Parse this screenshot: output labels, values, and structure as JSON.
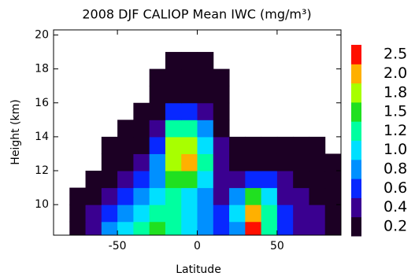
{
  "chart_data": {
    "type": "heatmap",
    "title": "2008 DJF CALIOP Mean IWC (mg/m³)",
    "xlabel": "Latitude",
    "ylabel": "Height (km)",
    "xlim": [
      -90,
      90
    ],
    "ylim": [
      8.2,
      20.3
    ],
    "xticks": [
      -50,
      0,
      50
    ],
    "yticks": [
      10,
      12,
      14,
      16,
      18,
      20
    ],
    "x": [
      -75,
      -65,
      -55,
      -45,
      -35,
      -25,
      -15,
      -5,
      5,
      15,
      25,
      35,
      45,
      55,
      65,
      75,
      85
    ],
    "y": [
      8.5,
      9.5,
      10.5,
      11.5,
      12.5,
      13.5,
      14.5,
      15.5,
      16.5,
      17.5,
      18.5,
      19.5
    ],
    "z": [
      [
        0.2,
        0.4,
        0.8,
        1.0,
        1.2,
        1.5,
        1.2,
        1.0,
        0.8,
        0.6,
        0.8,
        2.5,
        1.2,
        0.6,
        0.4,
        0.4,
        0.2
      ],
      [
        0.1,
        0.4,
        0.6,
        0.8,
        1.0,
        1.2,
        1.2,
        1.0,
        0.8,
        0.6,
        1.0,
        2.0,
        1.2,
        0.6,
        0.4,
        0.4,
        0.2
      ],
      [
        0.05,
        0.2,
        0.4,
        0.6,
        0.8,
        1.0,
        1.2,
        1.0,
        0.8,
        0.4,
        0.8,
        1.5,
        1.0,
        0.4,
        0.4,
        0.2,
        0.1
      ],
      [
        null,
        0.1,
        0.2,
        0.4,
        0.6,
        0.8,
        1.5,
        1.5,
        1.0,
        0.4,
        0.4,
        0.6,
        0.6,
        0.4,
        0.2,
        0.2,
        0.1
      ],
      [
        null,
        null,
        0.1,
        0.2,
        0.4,
        0.8,
        1.8,
        2.0,
        1.2,
        0.4,
        0.2,
        0.2,
        0.2,
        0.2,
        0.1,
        0.1,
        0.05
      ],
      [
        null,
        null,
        0.05,
        0.1,
        0.2,
        0.6,
        1.8,
        1.8,
        1.0,
        0.4,
        0.1,
        0.1,
        0.1,
        0.1,
        0.1,
        0.05,
        null
      ],
      [
        null,
        null,
        null,
        0.05,
        0.1,
        0.4,
        1.2,
        1.2,
        0.8,
        0.2,
        null,
        null,
        null,
        null,
        null,
        null,
        null
      ],
      [
        null,
        null,
        null,
        null,
        0.05,
        0.2,
        0.6,
        0.6,
        0.4,
        0.1,
        null,
        null,
        null,
        null,
        null,
        null,
        null
      ],
      [
        null,
        null,
        null,
        null,
        null,
        0.1,
        0.2,
        0.2,
        0.1,
        0.05,
        null,
        null,
        null,
        null,
        null,
        null,
        null
      ],
      [
        null,
        null,
        null,
        null,
        null,
        0.05,
        0.05,
        0.05,
        0.05,
        0.05,
        null,
        null,
        null,
        null,
        null,
        null,
        null
      ],
      [
        null,
        null,
        null,
        null,
        null,
        null,
        0.02,
        0.02,
        0.02,
        null,
        null,
        null,
        null,
        null,
        null,
        null,
        null
      ],
      [
        null,
        null,
        null,
        null,
        null,
        null,
        null,
        null,
        null,
        null,
        null,
        null,
        null,
        null,
        null,
        null,
        null
      ]
    ],
    "colorbar": {
      "ticks": [
        0.2,
        0.4,
        0.6,
        0.8,
        {
          "value": 1,
          "label": "1.0"
        },
        1.2,
        1.5,
        1.8,
        {
          "value": 2,
          "label": "2.0"
        },
        2.5
      ],
      "colors": [
        "#1c0024",
        "#3a0090",
        "#0828ff",
        "#0090ff",
        "#00e0ff",
        "#00ffa0",
        "#20e020",
        "#a8ff00",
        "#ffb000",
        "#ff1000"
      ]
    }
  }
}
